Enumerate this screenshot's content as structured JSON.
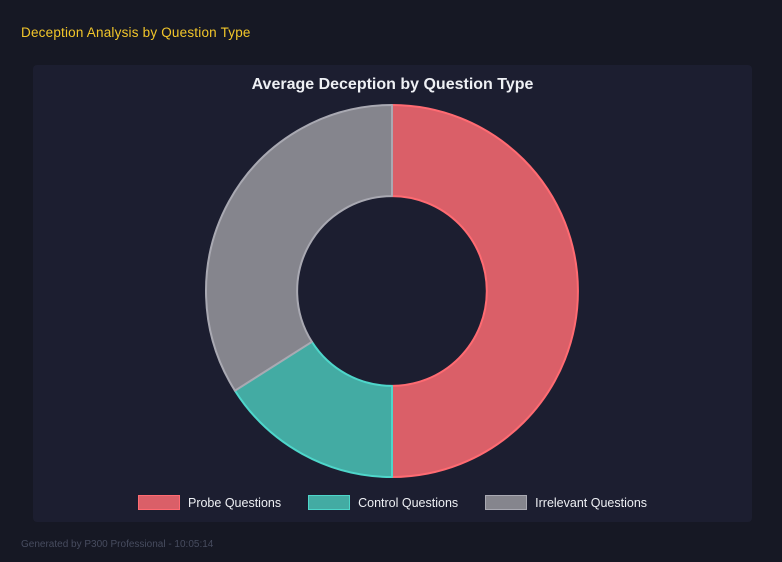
{
  "page": {
    "title": "Deception Analysis by Question Type",
    "footer": "Generated by P300 Professional - 10:05:14",
    "colors": {
      "page_background": "#161824",
      "panel_background": "#1c1e30",
      "title_accent": "#f2c62a",
      "text_light": "#eef0f4",
      "footer_text": "#474c5f"
    }
  },
  "chart_data": {
    "type": "pie",
    "subtype": "doughnut",
    "title": "Average Deception by Question Type",
    "categories": [
      "Probe Questions",
      "Control Questions",
      "Irrelevant Questions"
    ],
    "values": [
      50,
      16,
      34
    ],
    "values_unit": "percent-of-circle (estimated from arc angles, no numeric labels shown)",
    "segments": [
      {
        "label": "Probe Questions",
        "percent": 50,
        "fill": "#da5f68",
        "border": "#ff6b72"
      },
      {
        "label": "Control Questions",
        "percent": 16,
        "fill": "#43aba3",
        "border": "#4ed6ca"
      },
      {
        "label": "Irrelevant Questions",
        "percent": 34,
        "fill": "#85858d",
        "border": "#a9a9b2"
      }
    ],
    "start_angle_deg": 0,
    "direction": "clockwise",
    "cutout_ratio": 0.51,
    "legend_position": "bottom",
    "grid": false
  }
}
